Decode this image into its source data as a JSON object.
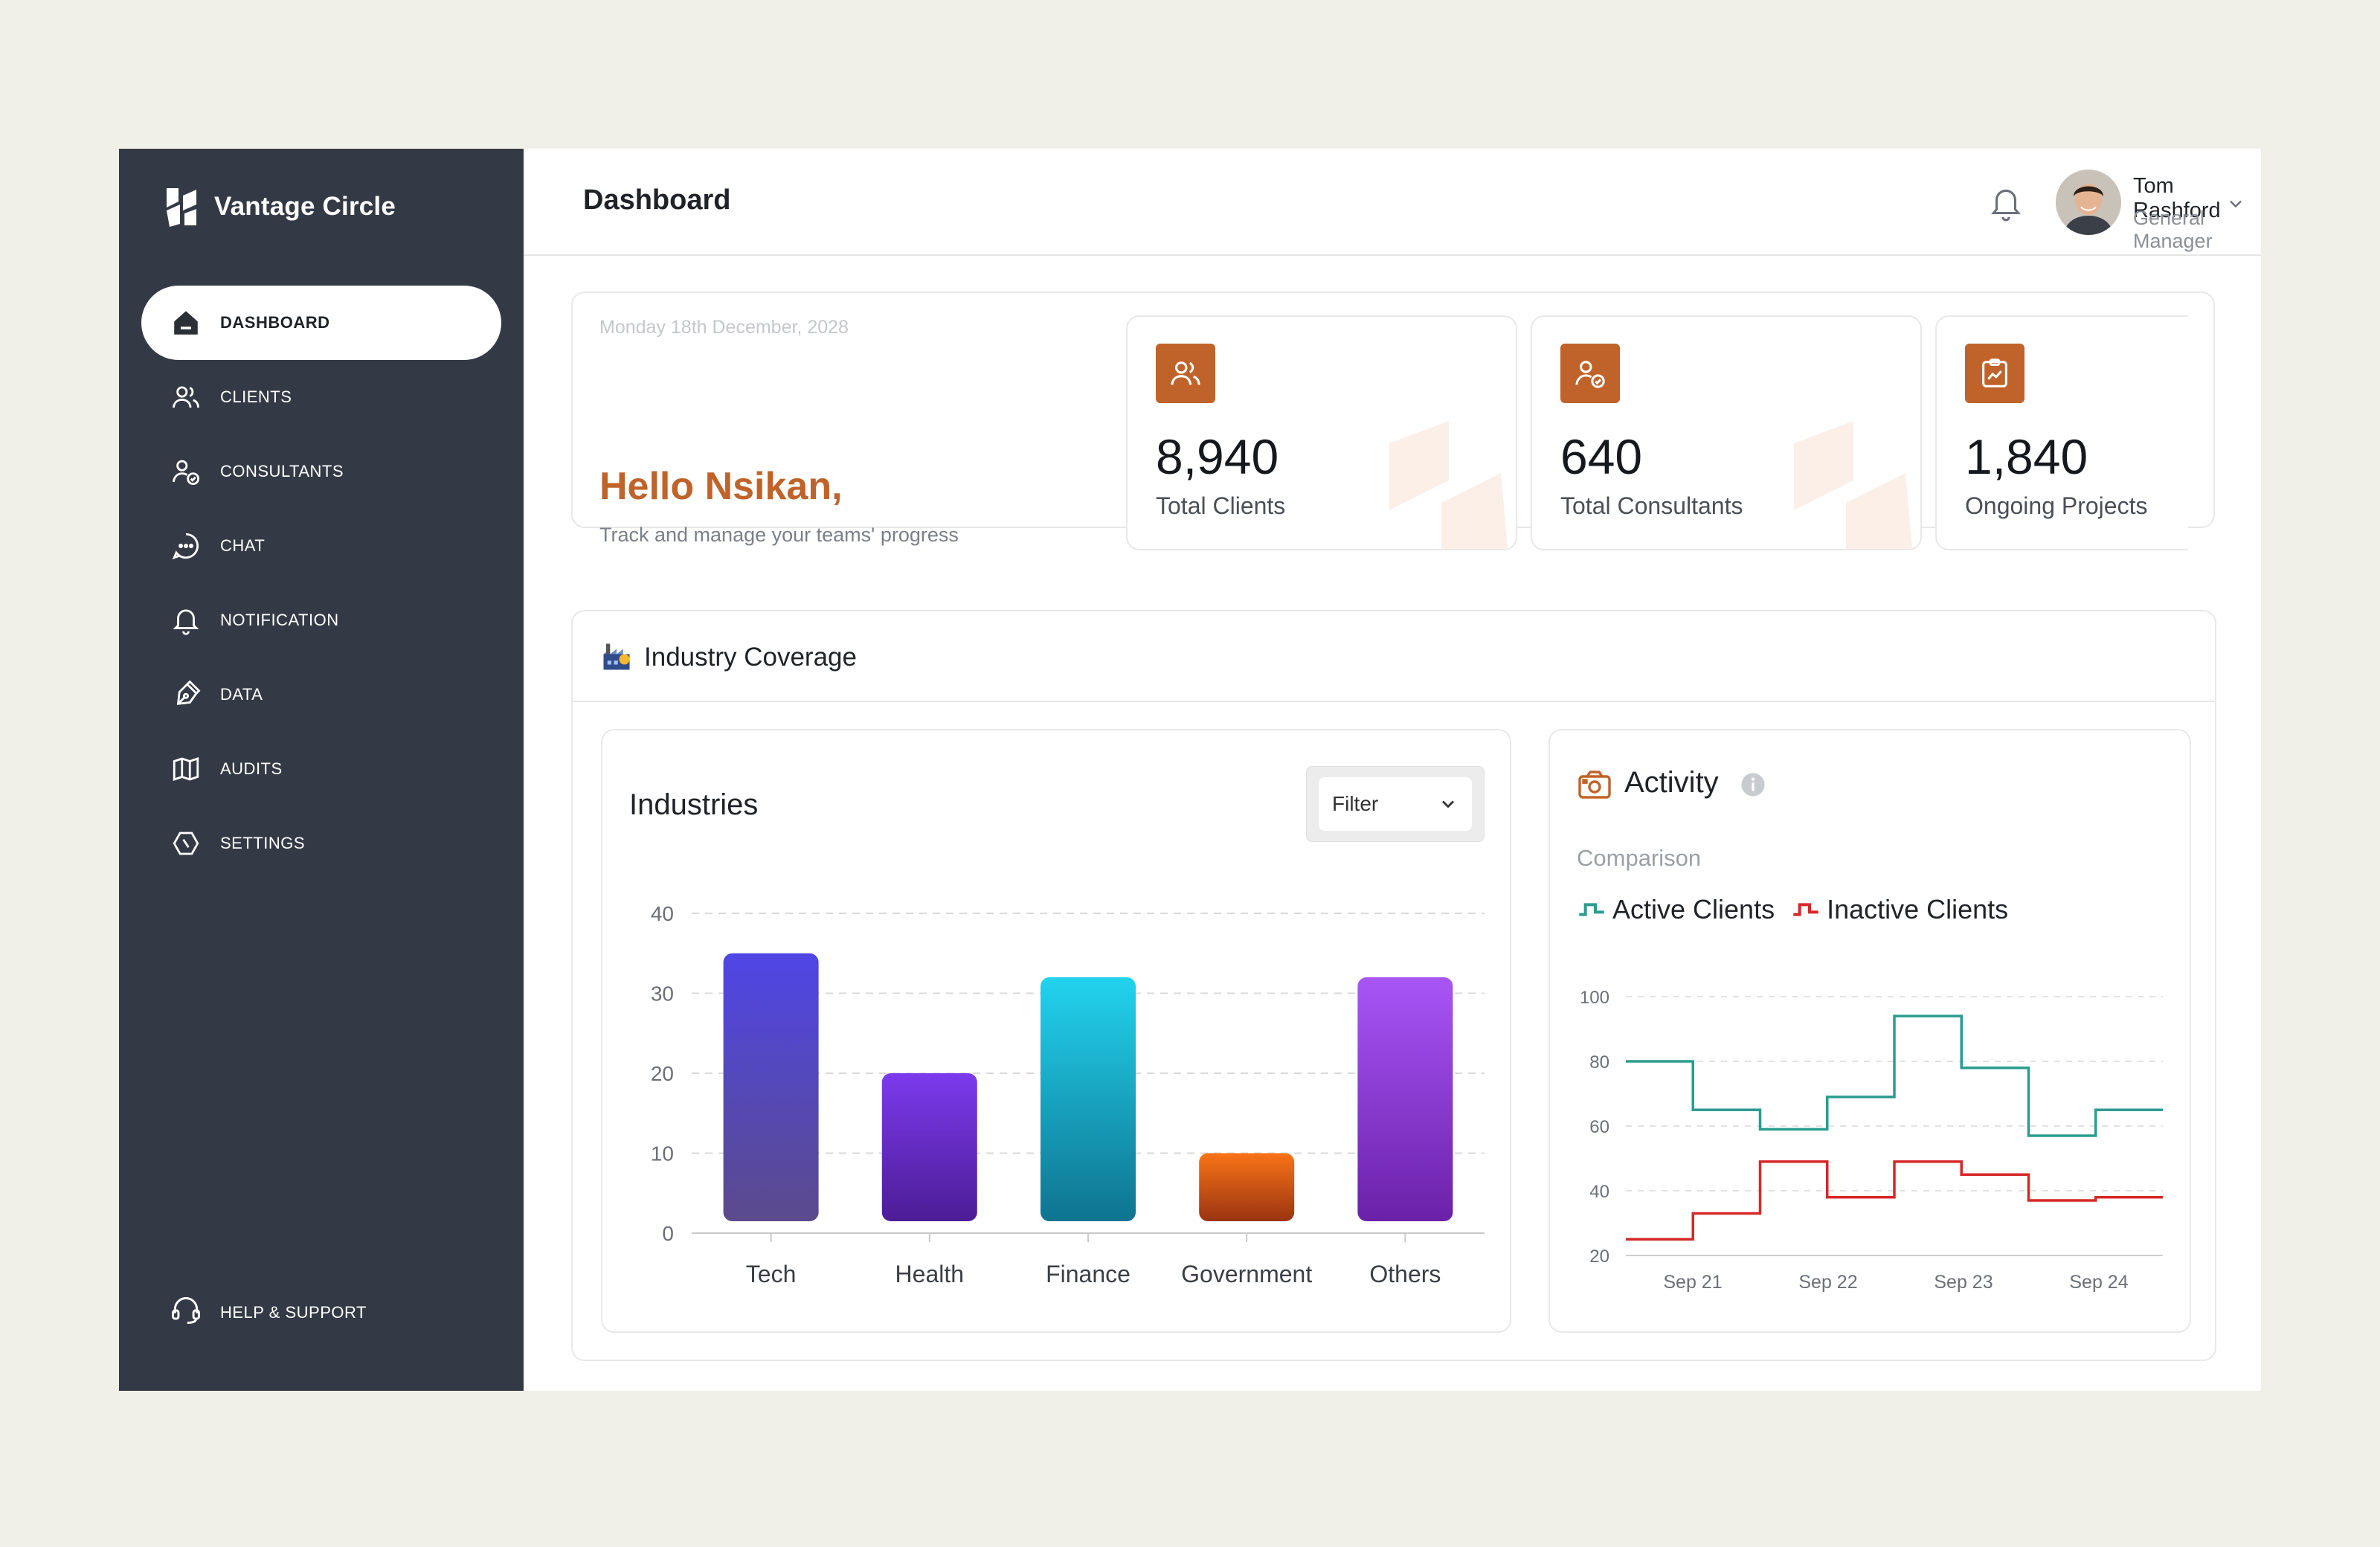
{
  "app": {
    "name": "Vantage Circle"
  },
  "sidebar": {
    "items": [
      {
        "key": "dashboard",
        "label": "DASHBOARD",
        "active": true
      },
      {
        "key": "clients",
        "label": "CLIENTS"
      },
      {
        "key": "consultants",
        "label": "CONSULTANTS"
      },
      {
        "key": "chat",
        "label": "CHAT"
      },
      {
        "key": "notification",
        "label": "NOTIFICATION"
      },
      {
        "key": "data",
        "label": "DATA"
      },
      {
        "key": "audits",
        "label": "AUDITS"
      },
      {
        "key": "settings",
        "label": "SETTINGS"
      }
    ],
    "help": "HELP & SUPPORT"
  },
  "header": {
    "title": "Dashboard",
    "user": {
      "name": "Tom Rashford",
      "role": "General Manager"
    }
  },
  "welcome": {
    "date": "Monday 18th December, 2028",
    "greeting": "Hello Nsikan,",
    "subtitle": "Track and manage your teams' progress"
  },
  "stats": [
    {
      "value": "8,940",
      "label": "Total Clients",
      "icon": "users-icon"
    },
    {
      "value": "640",
      "label": "Total Consultants",
      "icon": "user-check-icon"
    },
    {
      "value": "1,840",
      "label": "Ongoing Projects",
      "icon": "clipboard-chart-icon"
    }
  ],
  "section": {
    "title": "Industry Coverage",
    "icon": "factory-icon"
  },
  "industries": {
    "title": "Industries",
    "filter_label": "Filter"
  },
  "activity": {
    "title": "Activity",
    "subtitle": "Comparison",
    "legend": {
      "active": "Active Clients",
      "inactive": "Inactive Clients"
    }
  },
  "colors": {
    "accent": "#c0632a",
    "sidebar": "#343a45",
    "active_line": "#2a9d8f",
    "inactive_line": "#d62828"
  },
  "chart_data": [
    {
      "type": "bar",
      "categories": [
        "Tech",
        "Health",
        "Finance",
        "Government",
        "Others"
      ],
      "values": [
        35,
        20,
        32,
        10,
        32
      ],
      "yticks": [
        0,
        10,
        20,
        30,
        40
      ],
      "ylim": [
        0,
        40
      ],
      "grid": true,
      "colors": [
        [
          "#4f46e5",
          "#5b4a8c"
        ],
        [
          "#7c3aed",
          "#4c1d95"
        ],
        [
          "#22d3ee",
          "#0e7490"
        ],
        [
          "#f97316",
          "#9a3412"
        ],
        [
          "#a855f7",
          "#6b21a8"
        ]
      ]
    },
    {
      "type": "line",
      "step": true,
      "x_ticks": [
        "Sep 21",
        "Sep 22",
        "Sep 23",
        "Sep 24"
      ],
      "yticks": [
        20,
        40,
        60,
        80,
        100
      ],
      "ylim": [
        20,
        100
      ],
      "grid": true,
      "series": [
        {
          "name": "Active Clients",
          "color": "#2a9d8f",
          "values": [
            80,
            65,
            59,
            69,
            94,
            78,
            57,
            65
          ]
        },
        {
          "name": "Inactive Clients",
          "color": "#d62828",
          "values": [
            25,
            33,
            49,
            38,
            49,
            45,
            37,
            38
          ]
        }
      ]
    }
  ]
}
